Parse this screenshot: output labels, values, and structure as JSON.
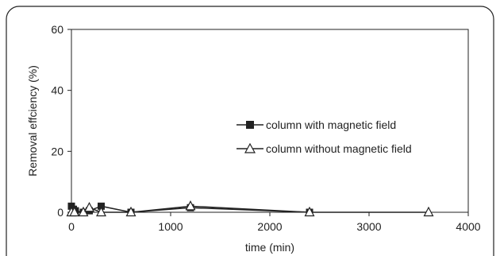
{
  "chart_data": {
    "type": "line",
    "title": "",
    "xlabel": "time (min)",
    "ylabel": "Removal effciency (%)",
    "xlim": [
      0,
      4000
    ],
    "ylim": [
      0,
      60
    ],
    "x_ticks": [
      0,
      1000,
      2000,
      3000,
      4000
    ],
    "y_ticks": [
      0,
      20,
      40,
      60
    ],
    "grid": false,
    "legend_position": "center-right",
    "series": [
      {
        "name": "column with magnetic field",
        "marker": "filled-square",
        "color": "#222222",
        "points": [
          [
            0,
            2
          ],
          [
            20,
            1
          ],
          [
            40,
            0.5
          ],
          [
            120,
            0
          ],
          [
            180,
            0.5
          ],
          [
            300,
            2
          ],
          [
            600,
            0
          ],
          [
            1200,
            1.5
          ],
          [
            2400,
            0
          ]
        ]
      },
      {
        "name": "column without magnetic field",
        "marker": "open-triangle",
        "color": "#222222",
        "points": [
          [
            0,
            0
          ],
          [
            30,
            0
          ],
          [
            120,
            0
          ],
          [
            180,
            1.5
          ],
          [
            300,
            0
          ],
          [
            600,
            0
          ],
          [
            1200,
            2
          ],
          [
            2400,
            0
          ],
          [
            3600,
            0
          ]
        ]
      }
    ]
  }
}
